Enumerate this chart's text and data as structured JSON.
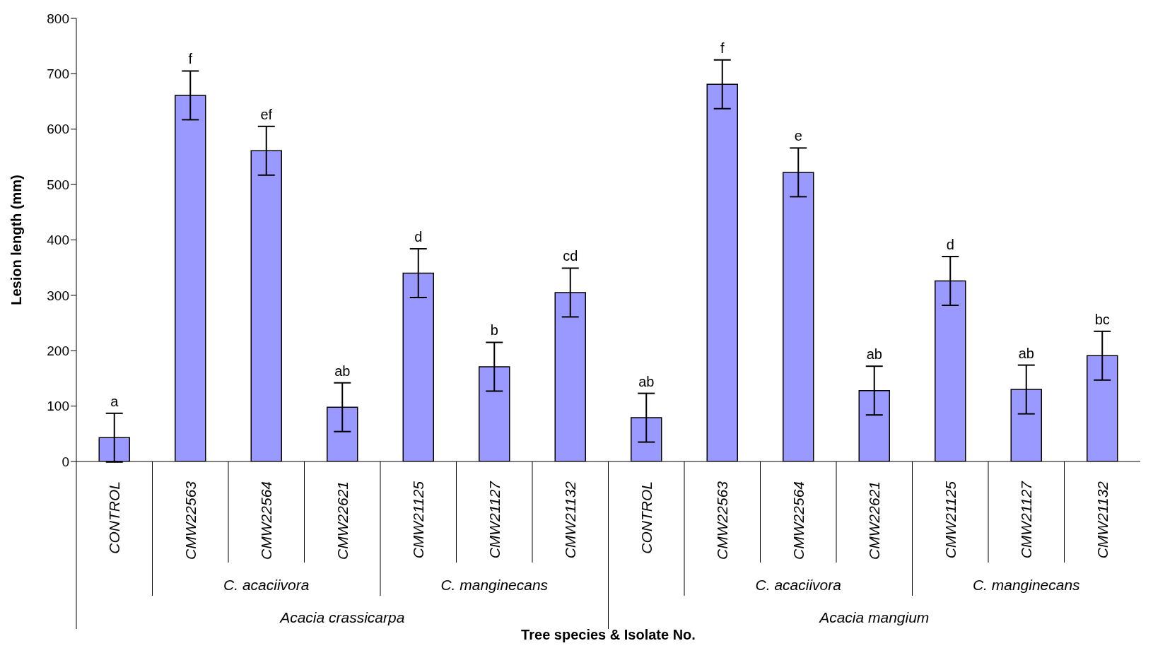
{
  "chart_data": {
    "type": "bar",
    "ylabel": "Lesion length (mm)",
    "categories": [
      "CONTROL",
      "CMW22563",
      "CMW22564",
      "CMW22621",
      "CMW21125",
      "CMW21127",
      "CMW21132",
      "CONTROL",
      "CMW22563",
      "CMW22564",
      "CMW22621",
      "CMW21125",
      "CMW21127",
      "CMW21132"
    ],
    "values": [
      43,
      661,
      561,
      98,
      340,
      171,
      305,
      79,
      681,
      522,
      128,
      326,
      130,
      191
    ],
    "errors": [
      44,
      44,
      44,
      44,
      44,
      44,
      44,
      44,
      44,
      44,
      44,
      44,
      44,
      44
    ],
    "value_labels": [
      "a",
      "f",
      "ef",
      "ab",
      "d",
      "b",
      "cd",
      "ab",
      "f",
      "e",
      "ab",
      "d",
      "ab",
      "bc"
    ],
    "color": "#9999ff",
    "ylim": [
      0,
      800
    ],
    "yticks": [
      0,
      100,
      200,
      300,
      400,
      500,
      600,
      700,
      800
    ],
    "annotations": [
      "C. acaciivora",
      "C. manginecans",
      "C. acaciivora",
      "C. manginecans",
      "Acacia crassicarpa",
      "Acacia mangium",
      "Tree species & Isolate No."
    ]
  }
}
